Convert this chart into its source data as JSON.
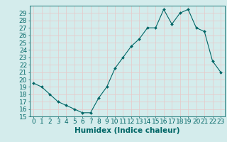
{
  "x": [
    0,
    1,
    2,
    3,
    4,
    5,
    6,
    7,
    8,
    9,
    10,
    11,
    12,
    13,
    14,
    15,
    16,
    17,
    18,
    19,
    20,
    21,
    22,
    23
  ],
  "y": [
    19.5,
    19.0,
    18.0,
    17.0,
    16.5,
    16.0,
    15.5,
    15.5,
    17.5,
    19.0,
    21.5,
    23.0,
    24.5,
    25.5,
    27.0,
    27.0,
    29.5,
    27.5,
    29.0,
    29.5,
    27.0,
    26.5,
    22.5,
    21.0
  ],
  "line_color": "#006666",
  "marker": "D",
  "marker_size": 2,
  "bg_color": "#d4ecec",
  "grid_color_h": "#e8c8c8",
  "grid_color_v": "#e8c8c8",
  "xlabel": "Humidex (Indice chaleur)",
  "ylim": [
    15,
    30
  ],
  "xlim": [
    -0.5,
    23.5
  ],
  "yticks": [
    15,
    16,
    17,
    18,
    19,
    20,
    21,
    22,
    23,
    24,
    25,
    26,
    27,
    28,
    29
  ],
  "xticks": [
    0,
    1,
    2,
    3,
    4,
    5,
    6,
    7,
    8,
    9,
    10,
    11,
    12,
    13,
    14,
    15,
    16,
    17,
    18,
    19,
    20,
    21,
    22,
    23
  ],
  "tick_color": "#006666",
  "label_color": "#006666",
  "font_size": 6.5,
  "xlabel_fontsize": 7.5
}
